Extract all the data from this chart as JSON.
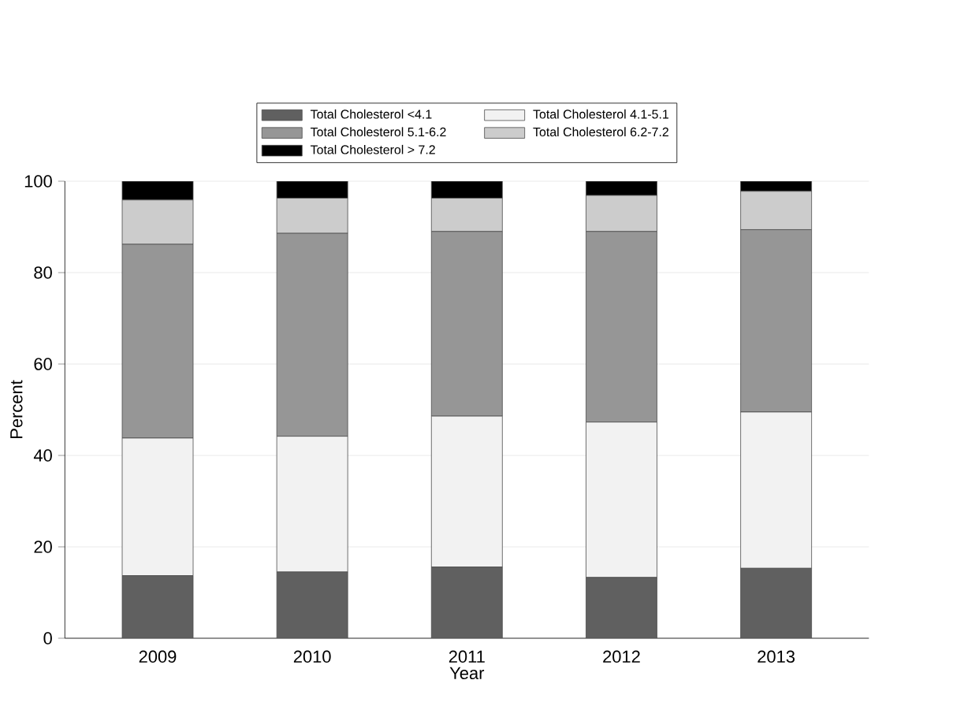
{
  "chart_data": {
    "type": "bar",
    "stacked": true,
    "xlabel": "Year",
    "ylabel": "Percent",
    "categories": [
      "2009",
      "2010",
      "2011",
      "2012",
      "2013"
    ],
    "series": [
      {
        "name": "Total Cholesterol <4.1",
        "color": "#606060",
        "values": [
          13.7,
          14.5,
          15.6,
          13.3,
          15.3
        ]
      },
      {
        "name": "Total Cholesterol 4.1-5.1",
        "color": "#f2f2f2",
        "values": [
          30.1,
          29.7,
          33.0,
          34.0,
          34.2
        ]
      },
      {
        "name": "Total Cholesterol 5.1-6.2",
        "color": "#969696",
        "values": [
          42.4,
          44.4,
          40.4,
          41.7,
          39.9
        ]
      },
      {
        "name": "Total Cholesterol 6.2-7.2",
        "color": "#cccccc",
        "values": [
          9.7,
          7.7,
          7.3,
          7.9,
          8.4
        ]
      },
      {
        "name": "Total Cholesterol > 7.2",
        "color": "#000000",
        "values": [
          4.1,
          3.7,
          3.7,
          3.1,
          2.2
        ]
      }
    ],
    "ylim": [
      0,
      100
    ],
    "yticks": [
      0,
      20,
      40,
      60,
      80,
      100
    ],
    "grid": "y",
    "legend": "top"
  }
}
